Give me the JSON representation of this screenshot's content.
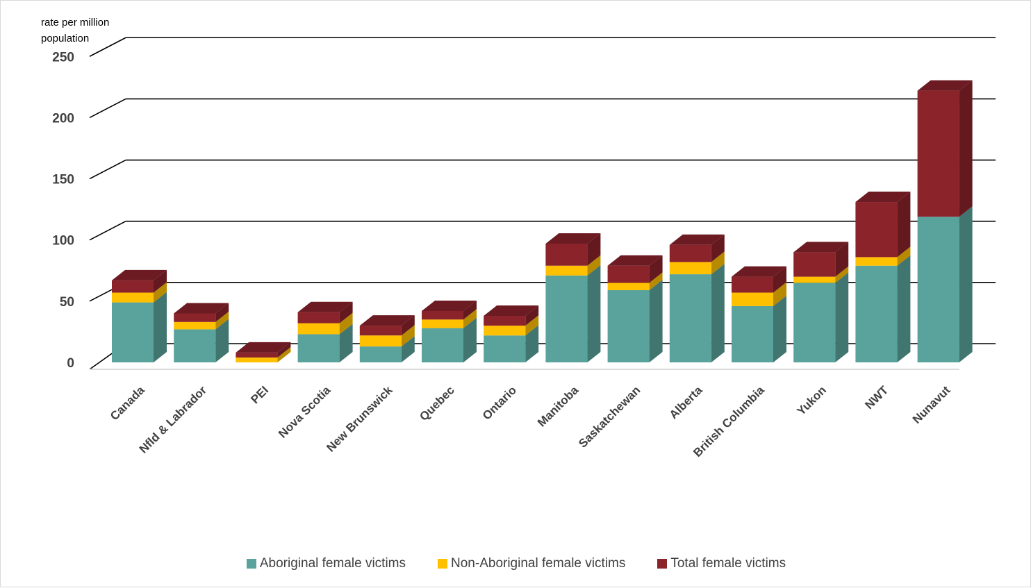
{
  "chart_data": {
    "type": "bar",
    "stacked": true,
    "three_d": true,
    "ylabel": "rate per million population",
    "ylim": [
      0,
      250
    ],
    "yticks": [
      0,
      50,
      100,
      150,
      200,
      250
    ],
    "grid": true,
    "legend_position": "bottom",
    "categories": [
      "Canada",
      "Nfld & Labrador",
      "PEI",
      "Nova Scotia",
      "New Brunswick",
      "Quebec",
      "Ontario",
      "Manitoba",
      "Saskatchewan",
      "Alberta",
      "British Columbia",
      "Yukon",
      "NWT",
      "Nunavut"
    ],
    "series": [
      {
        "name": "Aboriginal female victims",
        "color": "#5aa39c",
        "values": [
          49,
          27,
          0,
          23,
          13,
          28,
          22,
          71,
          59,
          72,
          46,
          65,
          79,
          119
        ]
      },
      {
        "name": "Non-Aboriginal female victims",
        "color": "#ffc000",
        "values": [
          8,
          6,
          4,
          9,
          9,
          7,
          8,
          8,
          6,
          10,
          11,
          5,
          7,
          0
        ]
      },
      {
        "name": "Total female victims",
        "color": "#8b232b",
        "values": [
          10,
          7,
          4,
          9,
          8,
          7,
          8,
          18,
          14,
          14,
          13,
          20,
          45,
          103
        ]
      }
    ]
  }
}
